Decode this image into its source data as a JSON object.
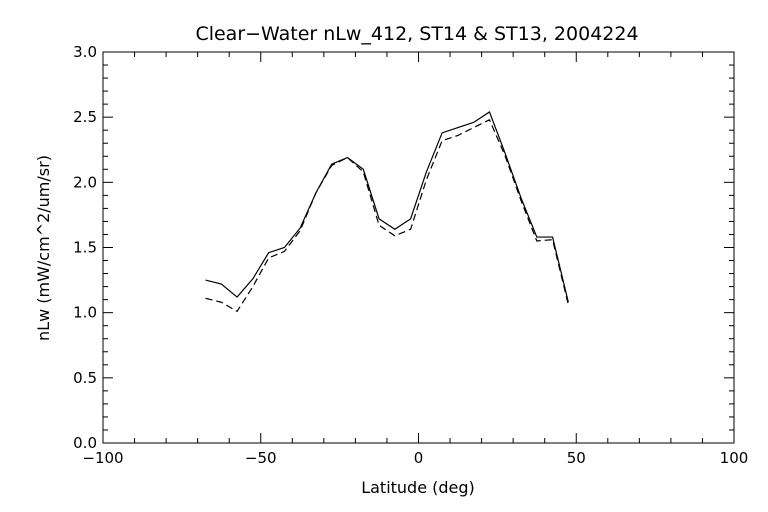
{
  "chart_data": {
    "type": "line",
    "title": "Clear−Water nLw_412, ST14 & ST13, 2004224",
    "xlabel": "Latitude (deg)",
    "ylabel": "nLw (mW/cm^2/um/sr)",
    "xlim": [
      -100,
      100
    ],
    "ylim": [
      0.0,
      3.0
    ],
    "xticks": [
      "−100",
      "−50",
      "0",
      "50",
      "100"
    ],
    "yticks": [
      "0.0",
      "0.5",
      "1.0",
      "1.5",
      "2.0",
      "2.5",
      "3.0"
    ],
    "xtick_values": [
      -100,
      -50,
      0,
      50,
      100
    ],
    "ytick_values": [
      0.0,
      0.5,
      1.0,
      1.5,
      2.0,
      2.5,
      3.0
    ],
    "grid": false,
    "series": [
      {
        "style": "solid",
        "color": "#000000",
        "x": [
          -67.5,
          -62.5,
          -57.5,
          -52.5,
          -47.5,
          -42.5,
          -37.5,
          -32.5,
          -27.5,
          -22.5,
          -17.5,
          -12.5,
          -7.5,
          -2.5,
          2.5,
          7.5,
          12.5,
          17.5,
          22.5,
          27.5,
          32.5,
          37.5,
          42.5,
          47.5
        ],
        "y": [
          1.25,
          1.22,
          1.12,
          1.26,
          1.46,
          1.5,
          1.65,
          1.92,
          2.14,
          2.19,
          2.1,
          1.72,
          1.64,
          1.72,
          2.08,
          2.38,
          2.42,
          2.46,
          2.54,
          2.22,
          1.88,
          1.58,
          1.58,
          1.08
        ]
      },
      {
        "style": "dashed",
        "color": "#000000",
        "x": [
          -67.5,
          -62.5,
          -57.5,
          -52.5,
          -47.5,
          -42.5,
          -37.5,
          -32.5,
          -27.5,
          -22.5,
          -17.5,
          -12.5,
          -7.5,
          -2.5,
          2.5,
          7.5,
          12.5,
          17.5,
          22.5,
          27.5,
          32.5,
          37.5,
          42.5,
          47.5
        ],
        "y": [
          1.11,
          1.08,
          1.01,
          1.2,
          1.42,
          1.47,
          1.63,
          1.92,
          2.13,
          2.19,
          2.08,
          1.67,
          1.59,
          1.64,
          2.02,
          2.32,
          2.36,
          2.42,
          2.48,
          2.2,
          1.86,
          1.55,
          1.56,
          1.06
        ]
      }
    ]
  }
}
